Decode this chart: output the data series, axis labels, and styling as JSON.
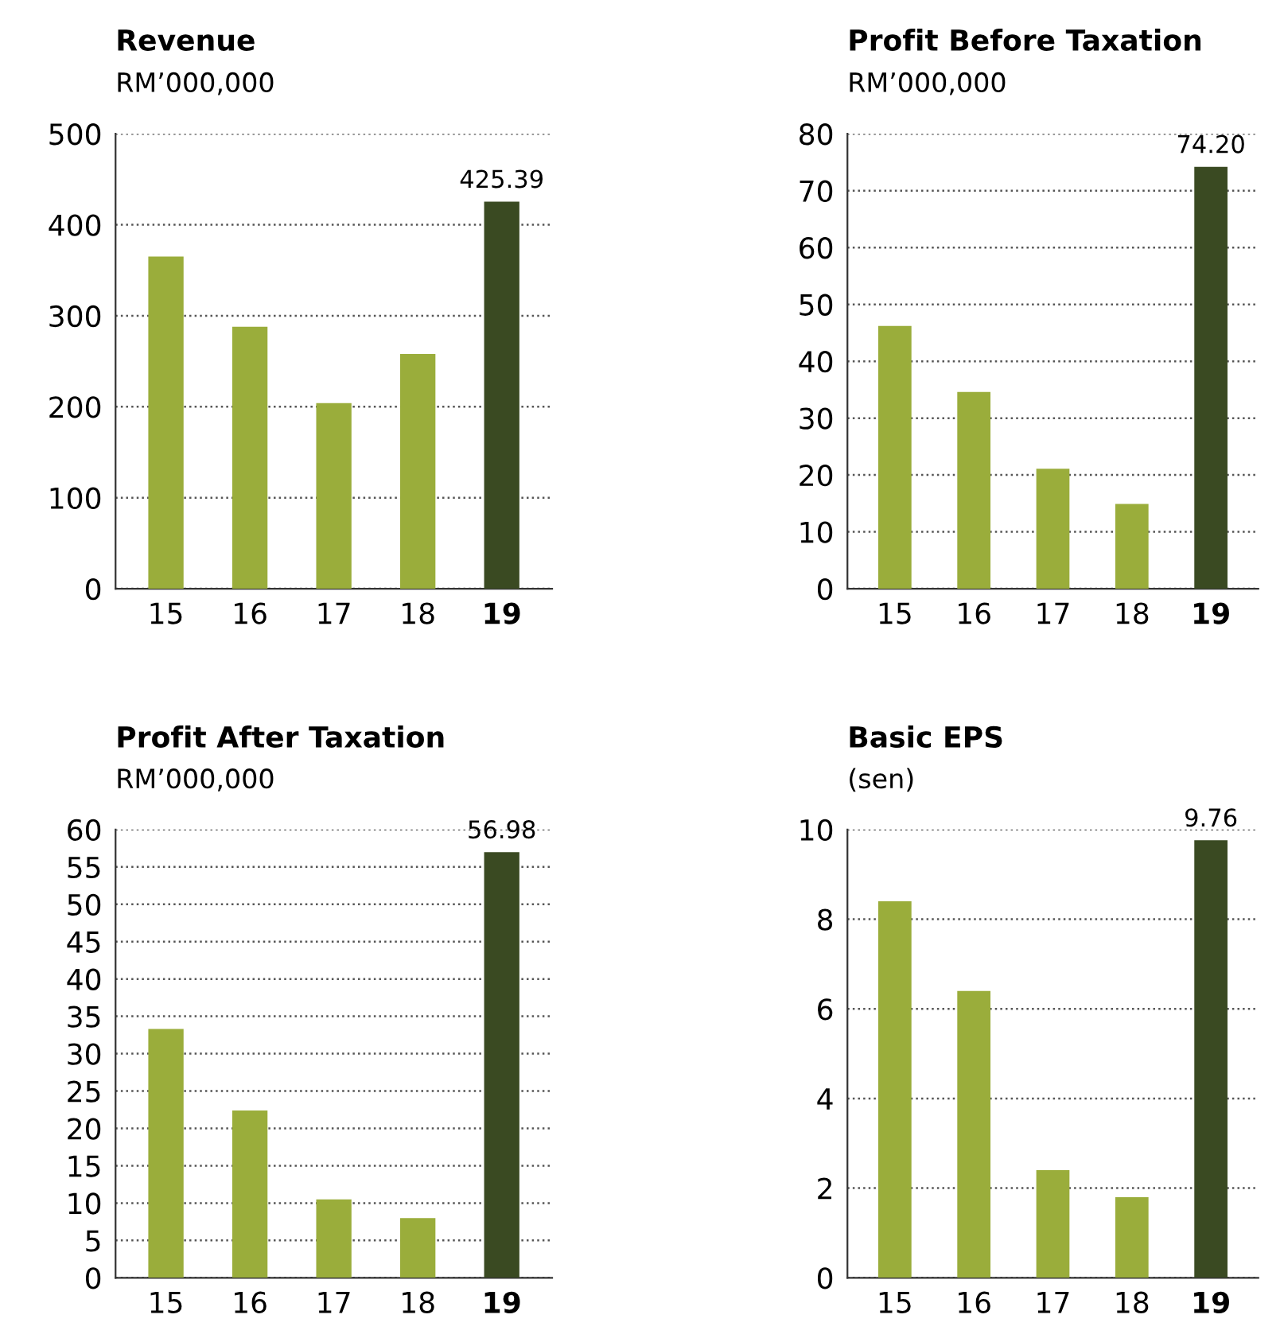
{
  "chart_data": [
    {
      "type": "bar",
      "title": "Revenue",
      "subtitle": "RM’000,000",
      "categories": [
        "15",
        "16",
        "17",
        "18",
        "19"
      ],
      "values": [
        365,
        288,
        204,
        258,
        425.39
      ],
      "colors": [
        "#9aad3b",
        "#9aad3b",
        "#9aad3b",
        "#9aad3b",
        "#3a4a22"
      ],
      "value_labels": [
        null,
        null,
        null,
        null,
        "425.39"
      ],
      "ylim": [
        0,
        500
      ],
      "yticks": [
        0,
        100,
        200,
        300,
        400,
        500
      ],
      "grid": "y",
      "legend": false
    },
    {
      "type": "bar",
      "title": "Profit Before Taxation",
      "subtitle": "RM’000,000",
      "categories": [
        "15",
        "16",
        "17",
        "18",
        "19"
      ],
      "values": [
        46.2,
        34.6,
        21.1,
        14.9,
        74.2
      ],
      "colors": [
        "#9aad3b",
        "#9aad3b",
        "#9aad3b",
        "#9aad3b",
        "#3a4a22"
      ],
      "value_labels": [
        null,
        null,
        null,
        null,
        "74.20"
      ],
      "ylim": [
        0,
        80
      ],
      "yticks": [
        0,
        10,
        20,
        30,
        40,
        50,
        60,
        70,
        80
      ],
      "grid": "y",
      "legend": false
    },
    {
      "type": "bar",
      "title": "Profit After Taxation",
      "subtitle": "RM’000,000",
      "categories": [
        "15",
        "16",
        "17",
        "18",
        "19"
      ],
      "values": [
        33.3,
        22.4,
        10.5,
        8.0,
        56.98
      ],
      "colors": [
        "#9aad3b",
        "#9aad3b",
        "#9aad3b",
        "#9aad3b",
        "#3a4a22"
      ],
      "value_labels": [
        null,
        null,
        null,
        null,
        "56.98"
      ],
      "ylim": [
        0,
        60
      ],
      "yticks": [
        0,
        5,
        10,
        15,
        20,
        25,
        30,
        35,
        40,
        45,
        50,
        55,
        60
      ],
      "grid": "y",
      "legend": false
    },
    {
      "type": "bar",
      "title": "Basic EPS",
      "subtitle": "(sen)",
      "categories": [
        "15",
        "16",
        "17",
        "18",
        "19"
      ],
      "values": [
        8.4,
        6.4,
        2.4,
        1.8,
        9.76
      ],
      "colors": [
        "#9aad3b",
        "#9aad3b",
        "#9aad3b",
        "#9aad3b",
        "#3a4a22"
      ],
      "value_labels": [
        null,
        null,
        null,
        null,
        "9.76"
      ],
      "ylim": [
        0,
        10
      ],
      "yticks": [
        0,
        2,
        4,
        6,
        8,
        10
      ],
      "grid": "y",
      "legend": false
    }
  ]
}
